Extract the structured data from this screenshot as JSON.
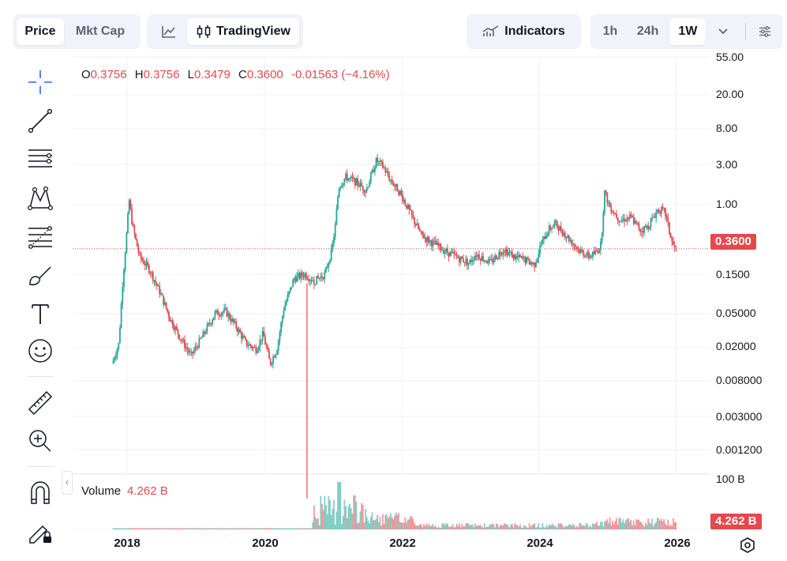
{
  "toolbar": {
    "price_label": "Price",
    "mktcap_label": "Mkt Cap",
    "tradingview_label": "TradingView",
    "indicators_label": "Indicators",
    "intervals": [
      "1h",
      "24h",
      "1W"
    ],
    "active_interval": "1W"
  },
  "ohlc": {
    "o_label": "O",
    "o": "0.3756",
    "h_label": "H",
    "h": "0.3756",
    "l_label": "L",
    "l": "0.3479",
    "c_label": "C",
    "c": "0.3600",
    "change": "-0.01563",
    "change_pct": "(−4.16%)"
  },
  "price_badge": "0.3600",
  "volume": {
    "label": "Volume",
    "value": "4.262 B",
    "axis_label": "100 B",
    "badge": "4.262 B"
  },
  "left_tools": [
    "crosshair-icon",
    "trendline-icon",
    "horizontal-lines-icon",
    "pattern-icon",
    "fib-icon",
    "brush-icon",
    "text-icon",
    "emoji-icon",
    "ruler-icon",
    "zoom-in-icon",
    "magnet-icon",
    "lock-draw-icon"
  ],
  "colors": {
    "up": "#26a69a",
    "down": "#e5484d",
    "badge": "#e5484d",
    "accent": "#131722"
  },
  "chart_data": {
    "type": "line",
    "title": "",
    "xlabel": "",
    "ylabel": "",
    "scale": "log",
    "grid": true,
    "y_ticks": [
      "55.00",
      "20.00",
      "8.00",
      "3.00",
      "1.00",
      "0.3600",
      "0.1500",
      "0.05000",
      "0.02000",
      "0.008000",
      "0.003000",
      "0.001200"
    ],
    "x_ticks": [
      "2018",
      "2020",
      "2022",
      "2024",
      "2026"
    ],
    "series": [
      {
        "x": [
          2017.8,
          2017.9,
          2017.95,
          2018.0,
          2018.05,
          2018.1,
          2018.2,
          2018.35,
          2018.5,
          2018.65,
          2018.8,
          2018.95,
          2019.1,
          2019.3,
          2019.45,
          2019.6,
          2019.75,
          2019.9,
          2020.0,
          2020.1,
          2020.2,
          2020.3,
          2020.45,
          2020.6,
          2020.75,
          2020.9,
          2021.0,
          2021.05,
          2021.1,
          2021.2,
          2021.35,
          2021.5,
          2021.65,
          2021.75,
          2021.85,
          2022.0,
          2022.15,
          2022.3,
          2022.45,
          2022.6,
          2022.8,
          2023.0,
          2023.1,
          2023.3,
          2023.5,
          2023.65,
          2023.8,
          2023.95,
          2024.05,
          2024.15,
          2024.25,
          2024.4,
          2024.6,
          2024.75,
          2024.85,
          2024.92,
          2024.97,
          2025.05,
          2025.2,
          2025.35,
          2025.5,
          2025.6,
          2025.75,
          2025.85,
          2025.95,
          2026.0
        ],
        "y": [
          0.025,
          0.04,
          0.15,
          0.4,
          1.1,
          0.6,
          0.3,
          0.22,
          0.13,
          0.07,
          0.045,
          0.03,
          0.045,
          0.08,
          0.085,
          0.06,
          0.04,
          0.035,
          0.05,
          0.025,
          0.035,
          0.09,
          0.18,
          0.2,
          0.17,
          0.2,
          0.35,
          0.6,
          1.5,
          1.9,
          1.7,
          1.4,
          2.8,
          2.4,
          1.8,
          1.3,
          0.8,
          0.5,
          0.42,
          0.36,
          0.3,
          0.26,
          0.32,
          0.26,
          0.36,
          0.3,
          0.28,
          0.25,
          0.4,
          0.55,
          0.65,
          0.5,
          0.35,
          0.3,
          0.33,
          0.4,
          1.35,
          0.95,
          0.7,
          0.75,
          0.55,
          0.6,
          0.9,
          0.85,
          0.42,
          0.36
        ]
      }
    ],
    "volume_ylim_label": "100 B"
  }
}
